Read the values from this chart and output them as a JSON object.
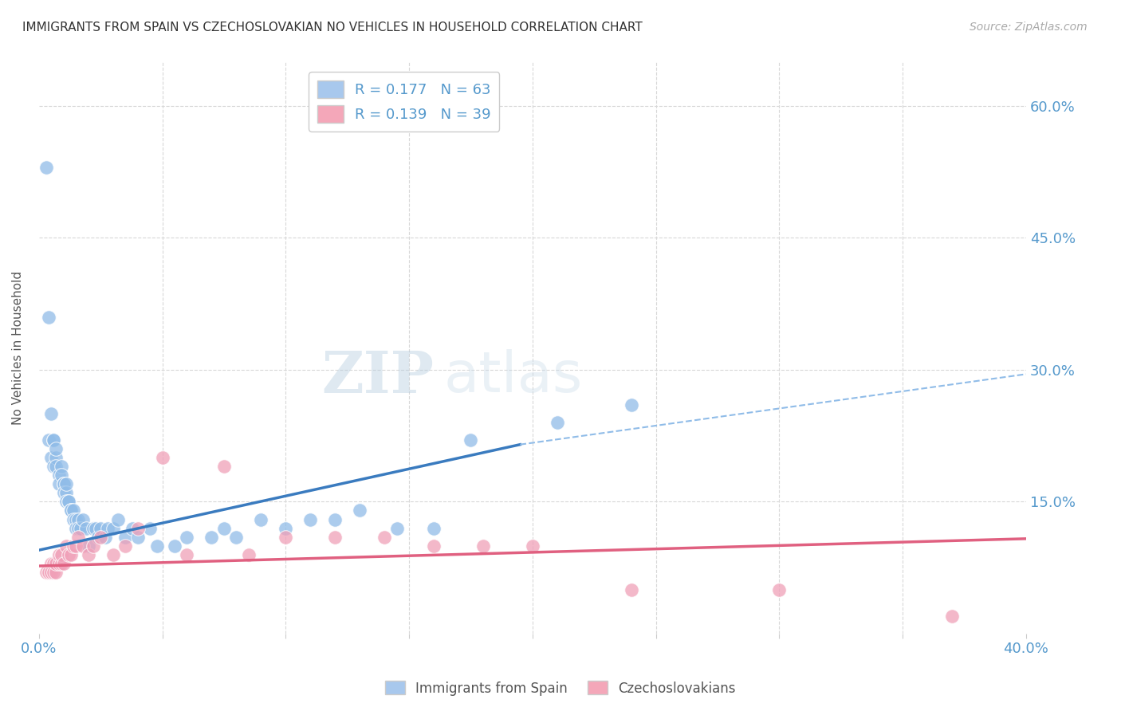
{
  "title": "IMMIGRANTS FROM SPAIN VS CZECHOSLOVAKIAN NO VEHICLES IN HOUSEHOLD CORRELATION CHART",
  "source": "Source: ZipAtlas.com",
  "ylabel": "No Vehicles in Household",
  "yticks": [
    "60.0%",
    "45.0%",
    "30.0%",
    "15.0%"
  ],
  "ytick_vals": [
    0.6,
    0.45,
    0.3,
    0.15
  ],
  "xlim": [
    0.0,
    0.4
  ],
  "ylim": [
    0.0,
    0.65
  ],
  "legend_color_blue": "#a8c8ed",
  "legend_color_pink": "#f4a7b9",
  "scatter_blue_color": "#90bce8",
  "scatter_pink_color": "#f0a0b8",
  "trendline_blue_color": "#3a7bbf",
  "trendline_pink_color": "#e06080",
  "trendline_dashed_color": "#90bce8",
  "watermark_zip": "ZIP",
  "watermark_atlas": "atlas",
  "label_spain": "Immigrants from Spain",
  "label_czech": "Czechoslovakians",
  "blue_scatter_x": [
    0.003,
    0.004,
    0.004,
    0.005,
    0.005,
    0.006,
    0.006,
    0.006,
    0.007,
    0.007,
    0.007,
    0.008,
    0.008,
    0.009,
    0.009,
    0.01,
    0.01,
    0.01,
    0.011,
    0.011,
    0.011,
    0.012,
    0.012,
    0.013,
    0.013,
    0.014,
    0.014,
    0.015,
    0.015,
    0.016,
    0.016,
    0.017,
    0.018,
    0.019,
    0.02,
    0.022,
    0.023,
    0.024,
    0.025,
    0.027,
    0.028,
    0.03,
    0.032,
    0.035,
    0.038,
    0.04,
    0.045,
    0.048,
    0.055,
    0.06,
    0.07,
    0.075,
    0.08,
    0.09,
    0.1,
    0.11,
    0.12,
    0.13,
    0.145,
    0.16,
    0.175,
    0.21,
    0.24
  ],
  "blue_scatter_y": [
    0.53,
    0.36,
    0.22,
    0.25,
    0.2,
    0.22,
    0.22,
    0.19,
    0.2,
    0.21,
    0.19,
    0.18,
    0.17,
    0.19,
    0.18,
    0.17,
    0.17,
    0.16,
    0.16,
    0.17,
    0.15,
    0.15,
    0.15,
    0.14,
    0.14,
    0.14,
    0.13,
    0.13,
    0.12,
    0.13,
    0.12,
    0.12,
    0.13,
    0.12,
    0.1,
    0.12,
    0.12,
    0.11,
    0.12,
    0.11,
    0.12,
    0.12,
    0.13,
    0.11,
    0.12,
    0.11,
    0.12,
    0.1,
    0.1,
    0.11,
    0.11,
    0.12,
    0.11,
    0.13,
    0.12,
    0.13,
    0.13,
    0.14,
    0.12,
    0.12,
    0.22,
    0.24,
    0.26
  ],
  "pink_scatter_x": [
    0.003,
    0.004,
    0.005,
    0.005,
    0.006,
    0.006,
    0.007,
    0.007,
    0.008,
    0.008,
    0.009,
    0.009,
    0.01,
    0.011,
    0.012,
    0.013,
    0.014,
    0.015,
    0.016,
    0.018,
    0.02,
    0.022,
    0.025,
    0.03,
    0.035,
    0.04,
    0.05,
    0.06,
    0.075,
    0.085,
    0.1,
    0.12,
    0.14,
    0.16,
    0.18,
    0.2,
    0.24,
    0.3,
    0.37
  ],
  "pink_scatter_y": [
    0.07,
    0.07,
    0.08,
    0.07,
    0.08,
    0.07,
    0.07,
    0.08,
    0.08,
    0.09,
    0.08,
    0.09,
    0.08,
    0.1,
    0.09,
    0.09,
    0.1,
    0.1,
    0.11,
    0.1,
    0.09,
    0.1,
    0.11,
    0.09,
    0.1,
    0.12,
    0.2,
    0.09,
    0.19,
    0.09,
    0.11,
    0.11,
    0.11,
    0.1,
    0.1,
    0.1,
    0.05,
    0.05,
    0.02
  ],
  "blue_trend_x": [
    0.0,
    0.195
  ],
  "blue_trend_y": [
    0.095,
    0.215
  ],
  "dashed_trend_x": [
    0.195,
    0.4
  ],
  "dashed_trend_y": [
    0.215,
    0.295
  ],
  "pink_trend_x": [
    0.0,
    0.4
  ],
  "pink_trend_y": [
    0.077,
    0.108
  ],
  "background_color": "#ffffff",
  "grid_color": "#d8d8d8",
  "title_color": "#333333",
  "tick_label_color": "#5599cc",
  "ylabel_color": "#555555"
}
